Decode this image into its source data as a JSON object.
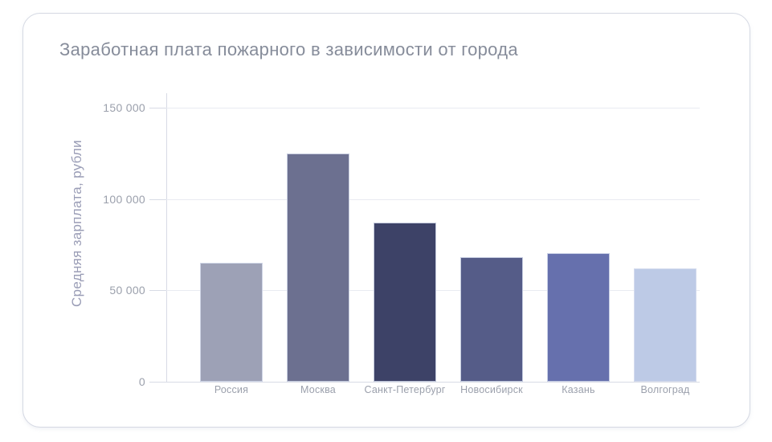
{
  "chart_data": {
    "type": "bar",
    "title": "Заработная плата пожарного в зависимости от города",
    "ylabel": "Средняя зарплата, рубли",
    "xlabel": "",
    "categories": [
      "Россия",
      "Москва",
      "Санкт-Петербург",
      "Новосибирск",
      "Казань",
      "Волгоград"
    ],
    "values": [
      65000,
      125000,
      87000,
      68000,
      70500,
      62000
    ],
    "bar_colors": [
      "#9da1b6",
      "#6c7090",
      "#3d4267",
      "#555c88",
      "#6670ad",
      "#bdcae6"
    ],
    "yticks": [
      0,
      50000,
      100000,
      150000
    ],
    "ytick_labels": [
      "0",
      "50 000",
      "100 000",
      "150 000"
    ],
    "ylim": [
      0,
      150000
    ],
    "grid": true,
    "legend": false
  },
  "colors": {
    "background": "#ffffff",
    "card_border": "#d5d9e3",
    "title_text": "#868c9a",
    "axis_label_text": "#9a9db6",
    "tick_text": "#9ba0ac",
    "gridline": "#e9ebf2",
    "axis_line": "#d8dbe5"
  }
}
